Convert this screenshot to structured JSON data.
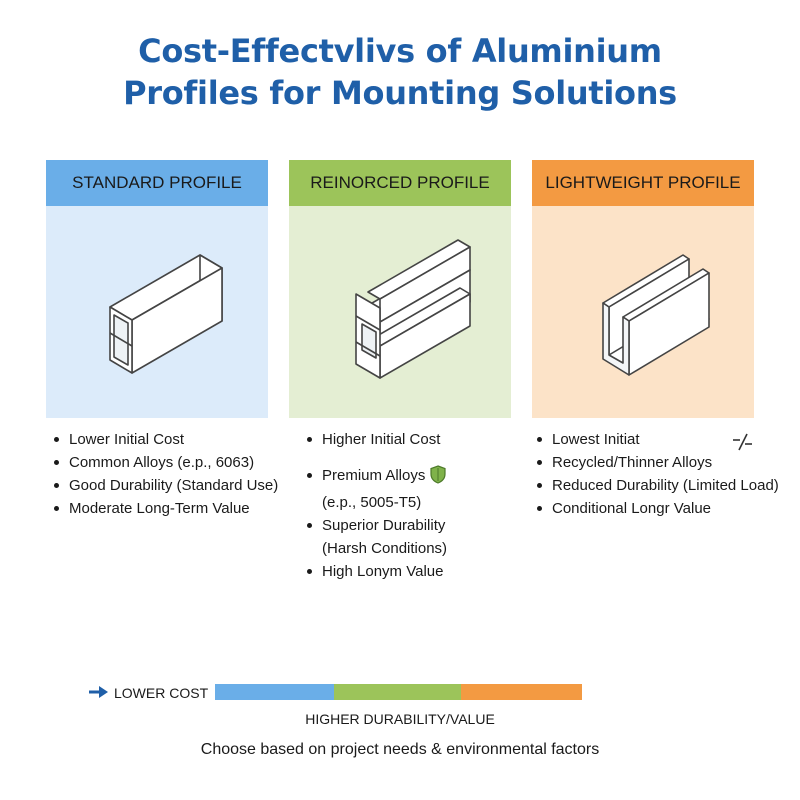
{
  "title": {
    "line1": "Cost-Effectvlivs of Aluminium",
    "line2": "Profiles for Mounting Solutions"
  },
  "columns": [
    {
      "header": "STANDARD PROFILE",
      "header_color": "#6aaee8",
      "panel_color": "#dcebfa",
      "illustration": "rectangular-tube-profile",
      "bullets": [
        "Lower Initial Cost",
        "Common Alloys (e.p., 6063)",
        "Good Durability (Standard Use)",
        "Moderate Long-Term Value"
      ]
    },
    {
      "header": "REINORCED PROFILE",
      "header_color": "#9cc45a",
      "panel_color": "#e4eed3",
      "illustration": "t-slot-reinforced-profile",
      "bullets": [
        "Higher Initial Cost",
        "Premium Alloys",
        "(e.p., 5005-T5)",
        "Superior Durability",
        "(Harsh Conditions)",
        "High Lonym Value"
      ],
      "icon": "shield-icon"
    },
    {
      "header": "LIGHTWEIGHT PROFILE",
      "header_color": "#f39a42",
      "panel_color": "#fce3c8",
      "illustration": "u-channel-profile",
      "bullets": [
        "Lowest Initiat",
        "Recycled/Thinner Alloys",
        "Reduced Durability (Limited Load)",
        "Conditional Longr Value"
      ],
      "icon": "slash-icon"
    }
  ],
  "legend": {
    "low_label": "LOWER COST",
    "high_label": "HIGHER DURABILITY/VALUE",
    "arrow_icon": "arrow-right-icon",
    "segment_colors": [
      "#6aaee8",
      "#9cc45a",
      "#f39a42"
    ]
  },
  "footer": "Choose based on project needs & environmental factors"
}
